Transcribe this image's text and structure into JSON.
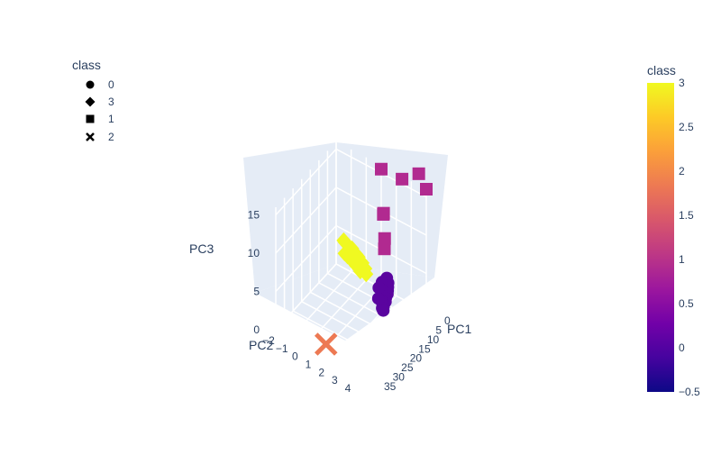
{
  "chart_data": {
    "type": "scatter3d",
    "axes": {
      "x": {
        "title": "PC1",
        "ticks": [
          "0",
          "5",
          "10",
          "15",
          "20",
          "25",
          "30",
          "35"
        ]
      },
      "y": {
        "title": "PC2",
        "ticks": [
          "−2",
          "−1",
          "0",
          "1",
          "2",
          "3",
          "4"
        ]
      },
      "z": {
        "title": "PC3",
        "ticks": [
          "0",
          "5",
          "10",
          "15"
        ]
      }
    },
    "legend": {
      "title": "class",
      "items": [
        {
          "label": "0",
          "symbol": "circle"
        },
        {
          "label": "3",
          "symbol": "diamond"
        },
        {
          "label": "1",
          "symbol": "square"
        },
        {
          "label": "2",
          "symbol": "x"
        }
      ]
    },
    "colorbar": {
      "title": "class",
      "range": [
        -0.5,
        3
      ],
      "ticks": [
        "3",
        "2.5",
        "2",
        "1.5",
        "1",
        "0.5",
        "0",
        "−0.5"
      ],
      "colorscale": [
        "#0d0887",
        "#46039f",
        "#7201a8",
        "#9c179e",
        "#bd3786",
        "#d8576b",
        "#ed7953",
        "#fb9f3a",
        "#fdca26",
        "#f0f921"
      ]
    },
    "series": [
      {
        "name": "0",
        "symbol": "circle",
        "color": "#5a049f",
        "points": [
          [
            2,
            1.6,
            2.4
          ],
          [
            3,
            1.8,
            2.2
          ],
          [
            4,
            1.9,
            2.0
          ],
          [
            5,
            2.0,
            1.9
          ],
          [
            6,
            2.1,
            1.8
          ],
          [
            3,
            1.4,
            1.9
          ],
          [
            5,
            1.6,
            1.6
          ],
          [
            7,
            2.1,
            1.5
          ],
          [
            8,
            2.2,
            1.4
          ],
          [
            9,
            2.2,
            1.3
          ],
          [
            6,
            1.7,
            1.2
          ],
          [
            8,
            2.0,
            1.0
          ],
          [
            10,
            2.3,
            1.4
          ],
          [
            4,
            1.3,
            1.3
          ],
          [
            7,
            1.8,
            0.9
          ],
          [
            9,
            2.1,
            0.7
          ],
          [
            11,
            2.4,
            1.2
          ],
          [
            6,
            1.5,
            0.6
          ]
        ]
      },
      {
        "name": "3",
        "symbol": "diamond",
        "color": "#f0f921",
        "points": [
          [
            0,
            -1.5,
            3.6
          ],
          [
            1,
            -1.3,
            3.8
          ],
          [
            2,
            -1.0,
            4.0
          ],
          [
            3,
            -0.6,
            4.2
          ],
          [
            4,
            -0.2,
            4.1
          ],
          [
            5,
            0.2,
            3.9
          ],
          [
            1,
            -1.0,
            3.2
          ],
          [
            2,
            -0.6,
            3.4
          ],
          [
            3,
            -0.2,
            3.5
          ],
          [
            4,
            0.2,
            3.4
          ],
          [
            5,
            0.5,
            3.2
          ],
          [
            6,
            0.6,
            3.6
          ],
          [
            2,
            -1.2,
            2.7
          ],
          [
            3,
            -0.9,
            2.9
          ],
          [
            4,
            -0.5,
            3.0
          ],
          [
            5,
            -0.1,
            3.0
          ],
          [
            6,
            0.3,
            2.9
          ],
          [
            7,
            0.8,
            3.3
          ],
          [
            0,
            -0.8,
            2.6
          ],
          [
            1,
            -0.4,
            2.8
          ]
        ]
      },
      {
        "name": "1",
        "symbol": "square",
        "color": "#b12a90",
        "points": [
          [
            0,
            1.0,
            15.5
          ],
          [
            1,
            2.5,
            16.0
          ],
          [
            0,
            3.5,
            17.5
          ],
          [
            0,
            4.0,
            16.0
          ],
          [
            3,
            1.5,
            11.0
          ],
          [
            4,
            1.6,
            11.2
          ],
          [
            5,
            1.8,
            8.5
          ],
          [
            6,
            1.9,
            7.5
          ]
        ]
      },
      {
        "name": "2",
        "symbol": "x",
        "color": "#ed7953",
        "points": [
          [
            32,
            1.0,
            0.5
          ]
        ]
      }
    ]
  }
}
